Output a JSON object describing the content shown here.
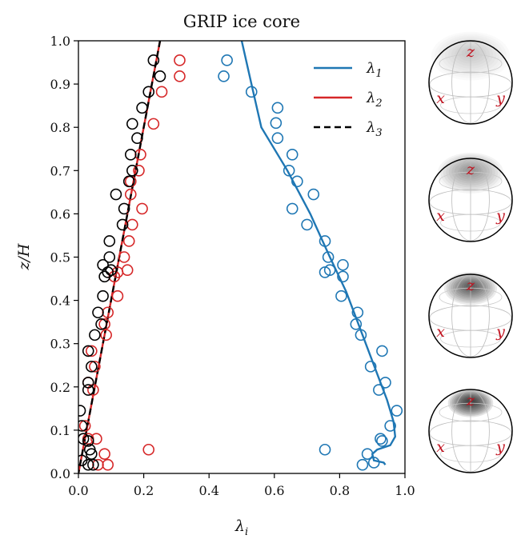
{
  "chart_data": {
    "type": "scatter",
    "title": "GRIP ice core",
    "xlabel": "λ_i",
    "xlabel_main": "λ",
    "xlabel_sub": "i",
    "ylabel": "z/H",
    "xlim": [
      0.0,
      1.0
    ],
    "ylim": [
      0.0,
      1.0
    ],
    "xticks": [
      "0.0",
      "0.2",
      "0.4",
      "0.6",
      "0.8",
      "1.0"
    ],
    "xtick_values": [
      0.0,
      0.2,
      0.4,
      0.6,
      0.8,
      1.0
    ],
    "yticks": [
      "0.0",
      "0.1",
      "0.2",
      "0.3",
      "0.4",
      "0.5",
      "0.6",
      "0.7",
      "0.8",
      "0.9",
      "1.0"
    ],
    "ytick_values": [
      0.0,
      0.1,
      0.2,
      0.3,
      0.4,
      0.5,
      0.6,
      0.7,
      0.8,
      0.9,
      1.0
    ],
    "legend_position": "top-right",
    "series": [
      {
        "name": "λ1",
        "main": "λ",
        "sub": "1",
        "color": "#1f77b4",
        "points": [
          [
            0.455,
            0.955
          ],
          [
            0.445,
            0.918
          ],
          [
            0.53,
            0.882
          ],
          [
            0.61,
            0.845
          ],
          [
            0.605,
            0.81
          ],
          [
            0.61,
            0.775
          ],
          [
            0.655,
            0.737
          ],
          [
            0.645,
            0.7
          ],
          [
            0.67,
            0.675
          ],
          [
            0.72,
            0.645
          ],
          [
            0.655,
            0.612
          ],
          [
            0.7,
            0.575
          ],
          [
            0.755,
            0.537
          ],
          [
            0.765,
            0.5
          ],
          [
            0.77,
            0.47
          ],
          [
            0.755,
            0.465
          ],
          [
            0.81,
            0.482
          ],
          [
            0.81,
            0.455
          ],
          [
            0.805,
            0.41
          ],
          [
            0.855,
            0.372
          ],
          [
            0.85,
            0.345
          ],
          [
            0.865,
            0.32
          ],
          [
            0.93,
            0.283
          ],
          [
            0.895,
            0.247
          ],
          [
            0.94,
            0.21
          ],
          [
            0.92,
            0.193
          ],
          [
            0.955,
            0.11
          ],
          [
            0.975,
            0.145
          ],
          [
            0.925,
            0.08
          ],
          [
            0.93,
            0.075
          ],
          [
            0.755,
            0.055
          ],
          [
            0.885,
            0.045
          ],
          [
            0.87,
            0.02
          ],
          [
            0.905,
            0.025
          ]
        ],
        "curve": [
          [
            0.5,
            1.0
          ],
          [
            0.53,
            0.9
          ],
          [
            0.56,
            0.8
          ],
          [
            0.64,
            0.7
          ],
          [
            0.71,
            0.6
          ],
          [
            0.77,
            0.5
          ],
          [
            0.82,
            0.42
          ],
          [
            0.87,
            0.32
          ],
          [
            0.91,
            0.24
          ],
          [
            0.945,
            0.17
          ],
          [
            0.965,
            0.12
          ],
          [
            0.97,
            0.085
          ],
          [
            0.955,
            0.065
          ],
          [
            0.915,
            0.055
          ],
          [
            0.9,
            0.045
          ],
          [
            0.905,
            0.03
          ],
          [
            0.935,
            0.025
          ],
          [
            0.94,
            0.02
          ]
        ]
      },
      {
        "name": "λ2",
        "main": "λ",
        "sub": "2",
        "color": "#d62728",
        "points": [
          [
            0.31,
            0.955
          ],
          [
            0.31,
            0.918
          ],
          [
            0.255,
            0.882
          ],
          [
            0.23,
            0.808
          ],
          [
            0.19,
            0.737
          ],
          [
            0.185,
            0.7
          ],
          [
            0.16,
            0.675
          ],
          [
            0.16,
            0.645
          ],
          [
            0.195,
            0.612
          ],
          [
            0.165,
            0.575
          ],
          [
            0.155,
            0.537
          ],
          [
            0.14,
            0.5
          ],
          [
            0.15,
            0.47
          ],
          [
            0.12,
            0.465
          ],
          [
            0.11,
            0.455
          ],
          [
            0.12,
            0.41
          ],
          [
            0.09,
            0.372
          ],
          [
            0.08,
            0.345
          ],
          [
            0.085,
            0.32
          ],
          [
            0.04,
            0.283
          ],
          [
            0.05,
            0.247
          ],
          [
            0.03,
            0.21
          ],
          [
            0.045,
            0.193
          ],
          [
            0.02,
            0.11
          ],
          [
            0.03,
            0.08
          ],
          [
            0.055,
            0.08
          ],
          [
            0.215,
            0.055
          ],
          [
            0.08,
            0.045
          ],
          [
            0.09,
            0.02
          ],
          [
            0.06,
            0.02
          ]
        ],
        "curve": [
          [
            0.25,
            1.0
          ],
          [
            0.0,
            0.0
          ]
        ]
      },
      {
        "name": "λ3",
        "main": "λ",
        "sub": "3",
        "color": "#000000",
        "dashed": true,
        "points": [
          [
            0.23,
            0.955
          ],
          [
            0.25,
            0.918
          ],
          [
            0.215,
            0.882
          ],
          [
            0.195,
            0.845
          ],
          [
            0.165,
            0.808
          ],
          [
            0.18,
            0.775
          ],
          [
            0.16,
            0.737
          ],
          [
            0.165,
            0.7
          ],
          [
            0.155,
            0.675
          ],
          [
            0.115,
            0.645
          ],
          [
            0.14,
            0.612
          ],
          [
            0.135,
            0.575
          ],
          [
            0.095,
            0.537
          ],
          [
            0.095,
            0.5
          ],
          [
            0.075,
            0.482
          ],
          [
            0.08,
            0.455
          ],
          [
            0.09,
            0.465
          ],
          [
            0.1,
            0.47
          ],
          [
            0.075,
            0.41
          ],
          [
            0.06,
            0.372
          ],
          [
            0.07,
            0.345
          ],
          [
            0.05,
            0.32
          ],
          [
            0.03,
            0.283
          ],
          [
            0.04,
            0.247
          ],
          [
            0.03,
            0.21
          ],
          [
            0.03,
            0.193
          ],
          [
            0.005,
            0.145
          ],
          [
            0.01,
            0.11
          ],
          [
            0.015,
            0.08
          ],
          [
            0.03,
            0.075
          ],
          [
            0.035,
            0.055
          ],
          [
            0.04,
            0.045
          ],
          [
            0.01,
            0.03
          ],
          [
            0.03,
            0.02
          ],
          [
            0.045,
            0.02
          ]
        ],
        "curve": [
          [
            0.25,
            1.0
          ],
          [
            0.0,
            0.0
          ]
        ]
      }
    ],
    "orientation_distributions": [
      {
        "name": "globe-1",
        "concentration": 0.35,
        "labels": {
          "x": "x",
          "y": "y",
          "z": "z"
        }
      },
      {
        "name": "globe-2",
        "concentration": 0.6,
        "labels": {
          "x": "x",
          "y": "y",
          "z": "z"
        }
      },
      {
        "name": "globe-3",
        "concentration": 0.85,
        "labels": {
          "x": "x",
          "y": "y",
          "z": "z"
        }
      },
      {
        "name": "globe-4",
        "concentration": 1.0,
        "labels": {
          "x": "x",
          "y": "y",
          "z": "z"
        }
      }
    ]
  }
}
